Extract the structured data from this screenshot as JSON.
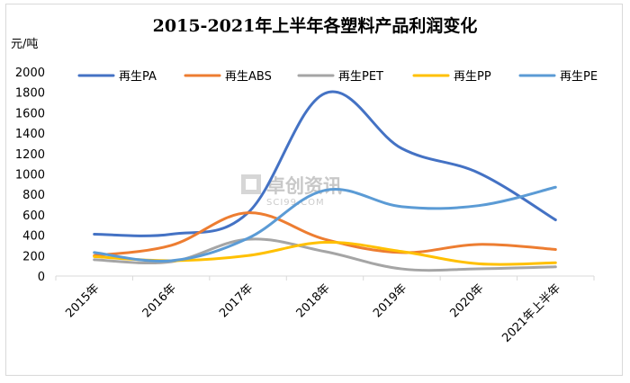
{
  "chart_data": {
    "type": "line",
    "title": "2015-2021年上半年各塑料产品利润变化",
    "ylabel": "元/吨",
    "xlabel": "",
    "categories": [
      "2015年",
      "2016年",
      "2017年",
      "2018年",
      "2019年",
      "2020年",
      "2021年上半年"
    ],
    "ylim": [
      0,
      2000
    ],
    "yticks": [
      0,
      200,
      400,
      600,
      800,
      1000,
      1200,
      1400,
      1600,
      1800,
      2000
    ],
    "grid": false,
    "legend": "top",
    "series": [
      {
        "name": "再生PA",
        "color": "#4472C4",
        "values": [
          410,
          410,
          620,
          1790,
          1250,
          1010,
          550
        ]
      },
      {
        "name": "再生ABS",
        "color": "#ED7D31",
        "values": [
          200,
          300,
          620,
          360,
          230,
          310,
          260
        ]
      },
      {
        "name": "再生PET",
        "color": "#A5A5A5",
        "values": [
          160,
          140,
          360,
          240,
          70,
          70,
          90
        ]
      },
      {
        "name": "再生PP",
        "color": "#FFC000",
        "values": [
          190,
          150,
          200,
          330,
          240,
          120,
          130
        ]
      },
      {
        "name": "再生PE",
        "color": "#5B9BD5",
        "values": [
          230,
          150,
          370,
          840,
          680,
          690,
          870
        ]
      }
    ]
  },
  "watermark": {
    "text": "卓创资讯",
    "sub": "SCI99.COM"
  }
}
